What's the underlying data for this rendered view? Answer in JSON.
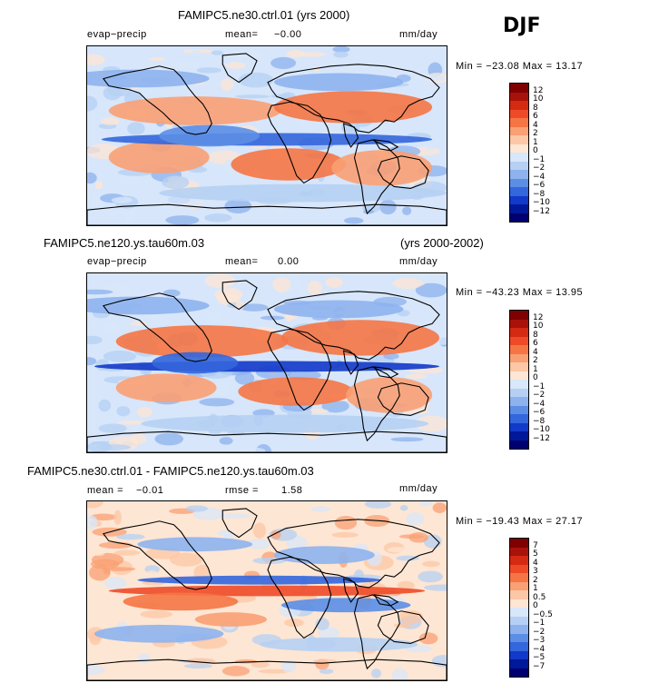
{
  "season": "DJF",
  "panels": [
    {
      "title_left": "FAMIPC5.ne30.ctrl.01 (yrs 2000)",
      "title_right": "",
      "var": "evap−precip",
      "stat1_label": "mean=",
      "stat1_value": "−0.00",
      "stat2_label": "",
      "stat2_value": "",
      "units": "mm/day",
      "minmax": "Min = −23.08  Max =  13.17",
      "colorbar_labels": [
        "12",
        "10",
        "8",
        "6",
        "4",
        "2",
        "1",
        "0",
        "−1",
        "−2",
        "−4",
        "−6",
        "−8",
        "−10",
        "−12"
      ]
    },
    {
      "title_left": "FAMIPC5.ne120.ys.tau60m.03",
      "title_right": "(yrs 2000-2002)",
      "var": "evap−precip",
      "stat1_label": "mean=",
      "stat1_value": "0.00",
      "stat2_label": "",
      "stat2_value": "",
      "units": "mm/day",
      "minmax": "Min = −43.23  Max =  13.95",
      "colorbar_labels": [
        "12",
        "10",
        "8",
        "6",
        "4",
        "2",
        "1",
        "0",
        "−1",
        "−2",
        "−4",
        "−6",
        "−8",
        "−10",
        "−12"
      ]
    },
    {
      "title_left": "FAMIPC5.ne30.ctrl.01 - FAMIPC5.ne120.ys.tau60m.03",
      "title_right": "",
      "var": "",
      "stat1_label": "mean =",
      "stat1_value": "−0.01",
      "stat2_label": "rmse =",
      "stat2_value": "1.58",
      "units": "mm/day",
      "minmax": "Min = −19.43  Max =  27.17",
      "colorbar_labels": [
        "7",
        "5",
        "4",
        "3",
        "2",
        "1",
        "0.5",
        "0",
        "−0.5",
        "−1",
        "−2",
        "−3",
        "−4",
        "−5",
        "−7"
      ]
    }
  ],
  "colors": {
    "scale": [
      "#800000",
      "#a8120a",
      "#d42a12",
      "#ee4a28",
      "#f57545",
      "#f9a074",
      "#fcc7a6",
      "#fde6d4",
      "#d8e7f9",
      "#b6d0f3",
      "#8eb2ee",
      "#5c8ee6",
      "#3466dd",
      "#1239c9",
      "#00189a",
      "#000070"
    ],
    "land_outline": "#000000"
  },
  "chart_data": [
    {
      "type": "heatmap",
      "title": "FAMIPC5.ne30.ctrl.01 (yrs 2000)",
      "variable": "evap−precip",
      "units": "mm/day",
      "mean": -0.0,
      "min": -23.08,
      "max": 13.17,
      "levels": [
        -12,
        -10,
        -8,
        -6,
        -4,
        -2,
        -1,
        0,
        1,
        2,
        4,
        6,
        8,
        10,
        12
      ]
    },
    {
      "type": "heatmap",
      "title": "FAMIPC5.ne120.ys.tau60m.03 (yrs 2000-2002)",
      "variable": "evap−precip",
      "units": "mm/day",
      "mean": 0.0,
      "min": -43.23,
      "max": 13.95,
      "levels": [
        -12,
        -10,
        -8,
        -6,
        -4,
        -2,
        -1,
        0,
        1,
        2,
        4,
        6,
        8,
        10,
        12
      ]
    },
    {
      "type": "heatmap",
      "title": "FAMIPC5.ne30.ctrl.01 - FAMIPC5.ne120.ys.tau60m.03",
      "units": "mm/day",
      "mean": -0.01,
      "rmse": 1.58,
      "min": -19.43,
      "max": 27.17,
      "levels": [
        -7,
        -5,
        -4,
        -3,
        -2,
        -1,
        -0.5,
        0,
        0.5,
        1,
        2,
        3,
        4,
        5,
        7
      ]
    }
  ]
}
